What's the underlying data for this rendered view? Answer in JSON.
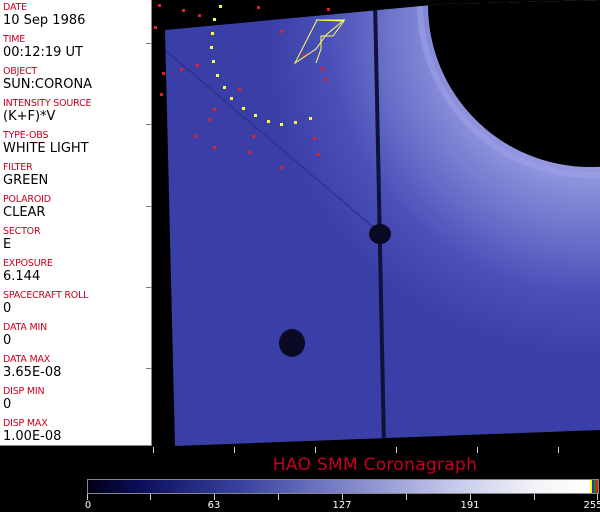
{
  "header_fields": [
    {
      "label": "DATE",
      "value": "10 Sep 1986"
    },
    {
      "label": "TIME",
      "value": "00:12:19 UT"
    },
    {
      "label": "OBJECT",
      "value": "SUN:CORONA"
    },
    {
      "label": "INTENSITY SOURCE",
      "value": "(K+F)*V"
    },
    {
      "label": "TYPE-OBS",
      "value": "WHITE LIGHT"
    },
    {
      "label": "FILTER",
      "value": "GREEN"
    },
    {
      "label": "POLAROID",
      "value": "CLEAR"
    },
    {
      "label": "SECTOR",
      "value": "E"
    },
    {
      "label": "EXPOSURE",
      "value": "6.144"
    },
    {
      "label": "SPACECRAFT ROLL",
      "value": "0"
    },
    {
      "label": "DATA MIN",
      "value": "0"
    },
    {
      "label": "DATA MAX",
      "value": "3.65E-08"
    },
    {
      "label": "DISP MIN",
      "value": "0"
    },
    {
      "label": "DISP MAX",
      "value": "1.00E-08"
    }
  ],
  "title": "HAO  SMM Coronagraph",
  "colorbar": {
    "min": 0,
    "max": 255,
    "ticks": [
      "0",
      "63",
      "127",
      "191",
      "255"
    ],
    "colormap": "dark-blue-to-white"
  },
  "colors": {
    "label": "#c8001e",
    "overlay_red": "#e0202a",
    "overlay_yellow": "#ffff40"
  }
}
